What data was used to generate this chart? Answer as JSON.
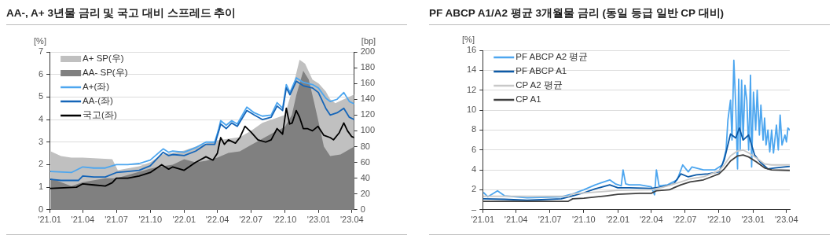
{
  "chart_data": [
    {
      "type": "line",
      "title": "AA-, A+ 3년물 금리 및 국고 대비 스프레드 추이",
      "ylabel": "[%]",
      "y2label": "[bp]",
      "xlim": [
        "2021-01-01",
        "2023-04-07"
      ],
      "xticks": [
        {
          "value": "2021-01-01",
          "label": "'21.01"
        },
        {
          "value": "2021-04-01",
          "label": "'21.04"
        },
        {
          "value": "2021-07-01",
          "label": "'21.07"
        },
        {
          "value": "2021-10-01",
          "label": "'21.10"
        },
        {
          "value": "2022-01-01",
          "label": "'22.01"
        },
        {
          "value": "2022-04-01",
          "label": "'22.04"
        },
        {
          "value": "2022-07-01",
          "label": "'22.07"
        },
        {
          "value": "2022-10-01",
          "label": "'22.10"
        },
        {
          "value": "2023-01-01",
          "label": "'23.01"
        },
        {
          "value": "2023-04-01",
          "label": "'23.04"
        }
      ],
      "ylim": [
        0,
        7
      ],
      "yticks": [
        0,
        1,
        2,
        3,
        4,
        5,
        6,
        7
      ],
      "y2lim": [
        0,
        200
      ],
      "y2ticks": [
        0,
        20,
        40,
        60,
        80,
        100,
        120,
        140,
        160,
        180,
        200
      ],
      "grid": "y",
      "legend": "top left",
      "series": [
        {
          "name": "A+ SP(우)",
          "type": "area",
          "axis": "y2",
          "color": "#c0c0c0",
          "x": [
            "2021-01-04",
            "2021-02-01",
            "2021-03-01",
            "2021-04-01",
            "2021-06-20",
            "2021-07-05",
            "2021-09-01",
            "2021-10-01",
            "2021-11-01",
            "2021-12-01",
            "2022-01-01",
            "2022-02-01",
            "2022-03-01",
            "2022-04-01",
            "2022-05-01",
            "2022-06-01",
            "2022-07-01",
            "2022-08-01",
            "2022-09-01",
            "2022-10-01",
            "2022-10-20",
            "2022-11-10",
            "2022-11-25",
            "2022-12-15",
            "2023-01-01",
            "2023-01-20",
            "2023-02-01",
            "2023-02-15",
            "2023-03-10",
            "2023-04-07"
          ],
          "values": [
            74,
            68,
            66,
            66,
            64,
            50,
            55,
            60,
            70,
            72,
            75,
            80,
            84,
            88,
            90,
            92,
            100,
            110,
            115,
            120,
            150,
            190,
            185,
            165,
            160,
            150,
            140,
            135,
            140,
            146
          ]
        },
        {
          "name": "AA- SP(우)",
          "type": "area",
          "axis": "y2",
          "color": "#808080",
          "x": [
            "2021-01-04",
            "2021-03-01",
            "2021-04-01",
            "2021-06-01",
            "2021-07-01",
            "2021-09-01",
            "2021-10-01",
            "2021-11-01",
            "2021-12-01",
            "2022-01-01",
            "2022-02-01",
            "2022-03-01",
            "2022-04-01",
            "2022-05-01",
            "2022-06-01",
            "2022-07-01",
            "2022-08-01",
            "2022-09-01",
            "2022-10-01",
            "2022-10-20",
            "2022-11-01",
            "2022-11-20",
            "2022-12-05",
            "2022-12-20",
            "2023-01-01",
            "2023-01-15",
            "2023-02-01",
            "2023-03-01",
            "2023-04-07"
          ],
          "values": [
            40,
            30,
            35,
            40,
            40,
            48,
            52,
            55,
            57,
            64,
            60,
            62,
            66,
            72,
            74,
            82,
            90,
            98,
            105,
            120,
            145,
            176,
            165,
            135,
            110,
            80,
            68,
            70,
            80
          ]
        },
        {
          "name": "A+(좌)",
          "type": "line",
          "color": "#4da6ef",
          "x": [
            "2021-01-04",
            "2021-03-01",
            "2021-04-01",
            "2021-05-01",
            "2021-06-01",
            "2021-07-01",
            "2021-08-01",
            "2021-09-01",
            "2021-10-01",
            "2021-11-05",
            "2021-11-20",
            "2021-12-01",
            "2022-01-01",
            "2022-02-01",
            "2022-03-01",
            "2022-03-25",
            "2022-04-05",
            "2022-04-10",
            "2022-04-25",
            "2022-05-10",
            "2022-05-25",
            "2022-06-20",
            "2022-07-10",
            "2022-08-01",
            "2022-08-25",
            "2022-09-10",
            "2022-09-25",
            "2022-10-05",
            "2022-10-15",
            "2022-11-01",
            "2022-11-20",
            "2022-12-15",
            "2022-12-31",
            "2023-01-20",
            "2023-02-01",
            "2023-02-20",
            "2023-03-10",
            "2023-03-25",
            "2023-04-07"
          ],
          "values": [
            1.7,
            1.65,
            1.9,
            1.85,
            1.85,
            2.0,
            2.0,
            2.05,
            2.2,
            2.7,
            2.55,
            2.6,
            2.55,
            2.75,
            3.0,
            3.0,
            3.6,
            3.95,
            3.75,
            3.95,
            3.8,
            4.55,
            4.3,
            4.15,
            4.2,
            4.75,
            4.5,
            5.55,
            5.2,
            5.85,
            5.65,
            5.55,
            5.4,
            4.95,
            4.8,
            4.9,
            5.2,
            4.8,
            4.7
          ]
        },
        {
          "name": "AA-(좌)",
          "type": "line",
          "color": "#1565b8",
          "x": [
            "2021-01-04",
            "2021-02-01",
            "2021-03-20",
            "2021-04-01",
            "2021-05-01",
            "2021-06-01",
            "2021-07-01",
            "2021-08-01",
            "2021-09-01",
            "2021-10-01",
            "2021-11-05",
            "2021-11-20",
            "2021-12-01",
            "2022-01-01",
            "2022-02-01",
            "2022-03-01",
            "2022-03-25",
            "2022-04-05",
            "2022-04-10",
            "2022-04-25",
            "2022-05-10",
            "2022-05-25",
            "2022-06-20",
            "2022-07-10",
            "2022-08-01",
            "2022-08-25",
            "2022-09-10",
            "2022-09-25",
            "2022-10-05",
            "2022-10-15",
            "2022-11-01",
            "2022-11-20",
            "2022-12-15",
            "2022-12-31",
            "2023-01-20",
            "2023-02-01",
            "2023-02-20",
            "2023-03-10",
            "2023-03-25",
            "2023-04-07"
          ],
          "values": [
            1.35,
            1.3,
            1.3,
            1.5,
            1.45,
            1.45,
            1.65,
            1.7,
            1.75,
            1.95,
            2.55,
            2.4,
            2.45,
            2.4,
            2.6,
            2.9,
            2.9,
            3.5,
            3.8,
            3.6,
            3.85,
            3.7,
            4.4,
            4.2,
            4.0,
            4.1,
            4.6,
            4.4,
            5.4,
            5.1,
            5.7,
            5.5,
            5.4,
            5.2,
            4.5,
            4.2,
            4.3,
            4.5,
            4.1,
            4.0
          ]
        },
        {
          "name": "국고(좌)",
          "type": "line",
          "color": "#000000",
          "x": [
            "2021-01-04",
            "2021-03-15",
            "2021-04-01",
            "2021-05-01",
            "2021-06-01",
            "2021-06-20",
            "2021-07-01",
            "2021-08-01",
            "2021-09-01",
            "2021-10-01",
            "2021-11-01",
            "2021-11-20",
            "2021-12-01",
            "2022-01-01",
            "2022-02-01",
            "2022-03-01",
            "2022-03-20",
            "2022-04-01",
            "2022-04-10",
            "2022-04-20",
            "2022-05-01",
            "2022-05-20",
            "2022-06-01",
            "2022-06-15",
            "2022-07-01",
            "2022-07-20",
            "2022-08-10",
            "2022-08-25",
            "2022-09-10",
            "2022-09-25",
            "2022-10-05",
            "2022-10-14",
            "2022-10-21",
            "2022-11-01",
            "2022-11-10",
            "2022-11-20",
            "2022-12-01",
            "2022-12-15",
            "2022-12-30",
            "2023-01-15",
            "2023-02-01",
            "2023-02-10",
            "2023-02-25",
            "2023-03-10",
            "2023-03-20",
            "2023-03-31",
            "2023-04-07"
          ],
          "values": [
            0.95,
            1.0,
            1.15,
            1.1,
            1.05,
            1.2,
            1.4,
            1.4,
            1.5,
            1.65,
            2.0,
            1.8,
            1.9,
            1.75,
            2.1,
            2.35,
            2.2,
            2.5,
            3.2,
            2.9,
            3.1,
            2.95,
            3.2,
            3.7,
            3.45,
            3.1,
            3.0,
            3.1,
            3.6,
            3.35,
            4.5,
            3.8,
            3.85,
            4.4,
            4.1,
            3.6,
            3.6,
            3.5,
            3.7,
            3.3,
            3.2,
            3.1,
            3.4,
            3.85,
            3.5,
            3.25,
            3.2
          ]
        }
      ]
    },
    {
      "type": "line",
      "title": "PF ABCP A1/A2 평균 3개월물 금리 (동일 등급 일반 CP 대비)",
      "ylabel": "[%]",
      "xlim": [
        "2021-01-01",
        "2023-04-10"
      ],
      "xticks": [
        {
          "value": "2021-01-01",
          "label": "'21.01"
        },
        {
          "value": "2021-04-01",
          "label": "'21.04"
        },
        {
          "value": "2021-07-01",
          "label": "'21.07"
        },
        {
          "value": "2021-10-01",
          "label": "'21.10"
        },
        {
          "value": "2022-01-01",
          "label": "'22.01"
        },
        {
          "value": "2022-04-01",
          "label": "'22.04"
        },
        {
          "value": "2022-07-01",
          "label": "'22.07"
        },
        {
          "value": "2022-10-01",
          "label": "'22.10"
        },
        {
          "value": "2023-01-01",
          "label": "'23.01"
        },
        {
          "value": "2023-04-01",
          "label": "'23.04"
        }
      ],
      "ylim": [
        0,
        16
      ],
      "yticks": [
        {
          "value": 0,
          "label": "–"
        },
        2,
        4,
        6,
        8,
        10,
        12,
        14,
        16
      ],
      "grid": "y",
      "legend": "top left",
      "series": [
        {
          "name": "PF ABCP A2 평균",
          "type": "line",
          "color": "#4da6ef",
          "x": [
            "2021-01-04",
            "2021-01-15",
            "2021-02-10",
            "2021-03-01",
            "2021-05-01",
            "2021-08-01",
            "2021-09-01",
            "2021-10-01",
            "2021-11-01",
            "2021-12-10",
            "2021-12-25",
            "2022-01-10",
            "2022-01-15",
            "2022-01-22",
            "2022-02-01",
            "2022-03-01",
            "2022-04-01",
            "2022-04-10",
            "2022-04-15",
            "2022-04-22",
            "2022-05-15",
            "2022-06-10",
            "2022-06-25",
            "2022-07-10",
            "2022-07-20",
            "2022-08-20",
            "2022-09-20",
            "2022-10-10",
            "2022-10-20",
            "2022-10-25",
            "2022-11-01",
            "2022-11-05",
            "2022-11-10",
            "2022-11-15",
            "2022-11-20",
            "2022-11-23",
            "2022-11-27",
            "2022-12-01",
            "2022-12-05",
            "2022-12-10",
            "2022-12-15",
            "2022-12-20",
            "2022-12-25",
            "2022-12-28",
            "2023-01-02",
            "2023-01-08",
            "2023-01-12",
            "2023-01-18",
            "2023-01-22",
            "2023-01-28",
            "2023-02-01",
            "2023-02-05",
            "2023-02-10",
            "2023-02-15",
            "2023-02-20",
            "2023-02-25",
            "2023-03-05",
            "2023-03-10",
            "2023-03-15",
            "2023-03-20",
            "2023-03-28",
            "2023-04-01",
            "2023-04-05",
            "2023-04-10"
          ],
          "values": [
            1.7,
            1.3,
            1.9,
            1.4,
            1.2,
            1.3,
            1.6,
            2.0,
            2.5,
            3.0,
            2.6,
            2.4,
            4.0,
            2.6,
            2.5,
            2.5,
            2.3,
            1.5,
            4.0,
            2.4,
            2.5,
            3.0,
            4.5,
            3.8,
            4.3,
            4.0,
            4.0,
            4.5,
            6.0,
            9.0,
            11.0,
            7.0,
            15.0,
            10.5,
            4.1,
            13.1,
            6.0,
            13.0,
            7.0,
            12.5,
            11.0,
            6.0,
            13.5,
            4.3,
            11.8,
            8.0,
            12.0,
            7.5,
            10.5,
            7.0,
            9.2,
            6.5,
            8.0,
            5.8,
            8.0,
            5.7,
            8.5,
            6.0,
            9.5,
            6.5,
            7.5,
            6.8,
            8.2,
            8.0
          ]
        },
        {
          "name": "PF ABCP A1",
          "type": "line",
          "color": "#0d5aa7",
          "x": [
            "2021-01-04",
            "2021-03-01",
            "2021-05-01",
            "2021-08-01",
            "2021-09-01",
            "2021-10-01",
            "2021-11-01",
            "2021-12-10",
            "2022-01-01",
            "2022-02-01",
            "2022-04-01",
            "2022-05-01",
            "2022-06-01",
            "2022-06-20",
            "2022-07-10",
            "2022-08-01",
            "2022-09-01",
            "2022-10-01",
            "2022-10-15",
            "2022-11-01",
            "2022-11-15",
            "2022-11-25",
            "2022-12-05",
            "2022-12-20",
            "2022-12-28",
            "2023-01-05",
            "2023-01-20",
            "2023-02-10",
            "2023-03-01",
            "2023-04-10"
          ],
          "values": [
            1.1,
            1.05,
            0.95,
            1.1,
            1.4,
            1.7,
            2.1,
            2.5,
            2.2,
            2.2,
            2.15,
            2.3,
            2.6,
            3.6,
            3.3,
            3.5,
            3.6,
            3.8,
            5.0,
            7.6,
            7.2,
            8.2,
            7.0,
            7.5,
            6.5,
            5.5,
            4.8,
            4.1,
            4.2,
            4.35
          ]
        },
        {
          "name": "CP A2 평균",
          "type": "line",
          "color": "#c8c8c8",
          "x": [
            "2021-01-04",
            "2021-08-20",
            "2021-09-01",
            "2021-12-01",
            "2022-01-01",
            "2022-04-01",
            "2022-05-01",
            "2022-06-20",
            "2022-07-15",
            "2022-08-20",
            "2022-09-10",
            "2022-10-01",
            "2022-10-15",
            "2022-11-01",
            "2022-11-20",
            "2022-12-05",
            "2022-12-20",
            "2023-01-10",
            "2023-02-01",
            "2023-02-20",
            "2023-04-10"
          ],
          "values": [
            1.35,
            1.35,
            1.6,
            1.85,
            1.95,
            2.0,
            2.25,
            2.8,
            3.1,
            3.3,
            3.6,
            3.9,
            4.5,
            5.4,
            5.9,
            6.0,
            5.7,
            5.2,
            4.6,
            4.5,
            4.5
          ]
        },
        {
          "name": "CP A1",
          "type": "line",
          "color": "#404040",
          "x": [
            "2021-01-04",
            "2021-08-20",
            "2021-09-01",
            "2021-10-01",
            "2021-12-01",
            "2022-01-01",
            "2022-03-01",
            "2022-04-01",
            "2022-04-15",
            "2022-05-20",
            "2022-06-01",
            "2022-06-20",
            "2022-07-15",
            "2022-08-20",
            "2022-09-10",
            "2022-10-01",
            "2022-10-15",
            "2022-11-01",
            "2022-11-20",
            "2022-12-05",
            "2022-12-20",
            "2023-01-10",
            "2023-02-01",
            "2023-02-20",
            "2023-04-10"
          ],
          "values": [
            0.85,
            0.85,
            1.1,
            1.15,
            1.4,
            1.55,
            1.65,
            1.65,
            1.9,
            2.0,
            2.2,
            2.5,
            2.8,
            3.0,
            3.3,
            3.6,
            4.1,
            4.9,
            5.4,
            5.5,
            5.3,
            4.8,
            4.2,
            4.0,
            3.95
          ]
        }
      ]
    }
  ]
}
